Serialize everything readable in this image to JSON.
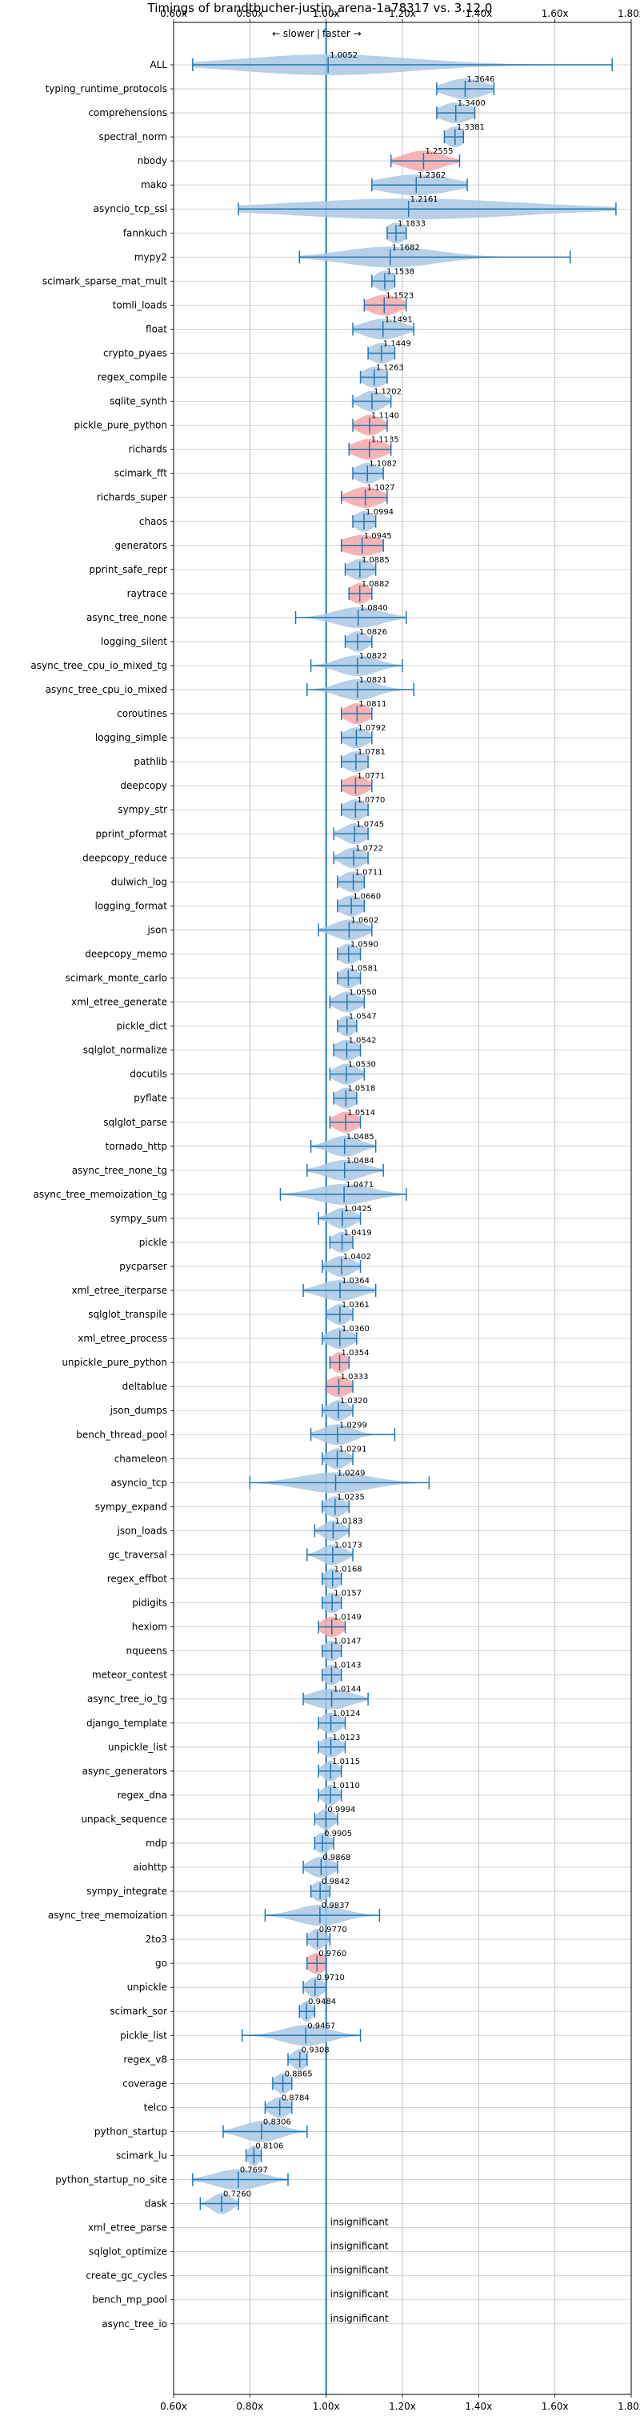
{
  "chart_data": {
    "type": "violin",
    "title": "Timings of brandtbucher-justin_arena-1a78317 vs. 3.12.0",
    "direction_labels": {
      "slower": "← slower",
      "faster": "faster →",
      "separator": "|"
    },
    "xlim": [
      0.6,
      1.8
    ],
    "x_ticks": [
      {
        "value": 0.6,
        "label": "0.60x"
      },
      {
        "value": 0.8,
        "label": "0.80x"
      },
      {
        "value": 1.0,
        "label": "1.00x"
      },
      {
        "value": 1.2,
        "label": "1.20x"
      },
      {
        "value": 1.4,
        "label": "1.40x"
      },
      {
        "value": 1.6,
        "label": "1.60x"
      },
      {
        "value": 1.8,
        "label": "1.80x"
      }
    ],
    "reference_line": 1.0,
    "grid": true,
    "insignificant_label": "insignificant",
    "colors": {
      "normal": "#1f77b4",
      "normal_fill": "#aac8e4",
      "highlight_fill": "#f4a7a9"
    },
    "benchmarks": [
      {
        "name": "ALL",
        "value": 1.0052,
        "label": "1.0052",
        "min": 0.65,
        "max": 1.75,
        "spread": 0.22,
        "highlight": false
      },
      {
        "name": "typing_runtime_protocols",
        "value": 1.3646,
        "label": "1.3646",
        "min": 1.29,
        "max": 1.44,
        "spread": 0.05,
        "highlight": false
      },
      {
        "name": "comprehensions",
        "value": 1.34,
        "label": "1.3400",
        "min": 1.29,
        "max": 1.39,
        "spread": 0.04,
        "highlight": false
      },
      {
        "name": "spectral_norm",
        "value": 1.3381,
        "label": "1.3381",
        "min": 1.31,
        "max": 1.36,
        "spread": 0.025,
        "highlight": false
      },
      {
        "name": "nbody",
        "value": 1.2555,
        "label": "1.2555",
        "min": 1.17,
        "max": 1.35,
        "spread": 0.05,
        "highlight": true
      },
      {
        "name": "mako",
        "value": 1.2362,
        "label": "1.2362",
        "min": 1.12,
        "max": 1.37,
        "spread": 0.09,
        "highlight": false
      },
      {
        "name": "asyncio_tcp_ssl",
        "value": 1.2161,
        "label": "1.2161",
        "min": 0.77,
        "max": 1.76,
        "spread": 0.3,
        "highlight": false
      },
      {
        "name": "fannkuch",
        "value": 1.1833,
        "label": "1.1833",
        "min": 1.16,
        "max": 1.21,
        "spread": 0.025,
        "highlight": false
      },
      {
        "name": "mypy2",
        "value": 1.1682,
        "label": "1.1682",
        "min": 0.93,
        "max": 1.64,
        "spread": 0.12,
        "highlight": false
      },
      {
        "name": "scimark_sparse_mat_mult",
        "value": 1.1538,
        "label": "1.1538",
        "min": 1.12,
        "max": 1.18,
        "spread": 0.025,
        "highlight": false
      },
      {
        "name": "tomli_loads",
        "value": 1.1523,
        "label": "1.1523",
        "min": 1.1,
        "max": 1.21,
        "spread": 0.04,
        "highlight": true
      },
      {
        "name": "float",
        "value": 1.1491,
        "label": "1.1491",
        "min": 1.07,
        "max": 1.23,
        "spread": 0.05,
        "highlight": false
      },
      {
        "name": "crypto_pyaes",
        "value": 1.1449,
        "label": "1.1449",
        "min": 1.11,
        "max": 1.18,
        "spread": 0.03,
        "highlight": false
      },
      {
        "name": "regex_compile",
        "value": 1.1263,
        "label": "1.1263",
        "min": 1.09,
        "max": 1.16,
        "spread": 0.03,
        "highlight": false
      },
      {
        "name": "sqlite_synth",
        "value": 1.1202,
        "label": "1.1202",
        "min": 1.07,
        "max": 1.17,
        "spread": 0.03,
        "highlight": false
      },
      {
        "name": "pickle_pure_python",
        "value": 1.114,
        "label": "1.1140",
        "min": 1.07,
        "max": 1.16,
        "spread": 0.03,
        "highlight": true
      },
      {
        "name": "richards",
        "value": 1.1135,
        "label": "1.1135",
        "min": 1.06,
        "max": 1.17,
        "spread": 0.04,
        "highlight": true
      },
      {
        "name": "scimark_fft",
        "value": 1.1082,
        "label": "1.1082",
        "min": 1.07,
        "max": 1.15,
        "spread": 0.03,
        "highlight": false
      },
      {
        "name": "richards_super",
        "value": 1.1027,
        "label": "1.1027",
        "min": 1.04,
        "max": 1.16,
        "spread": 0.04,
        "highlight": true
      },
      {
        "name": "chaos",
        "value": 1.0994,
        "label": "1.0994",
        "min": 1.07,
        "max": 1.13,
        "spread": 0.025,
        "highlight": false
      },
      {
        "name": "generators",
        "value": 1.0945,
        "label": "1.0945",
        "min": 1.04,
        "max": 1.15,
        "spread": 0.05,
        "highlight": true
      },
      {
        "name": "pprint_safe_repr",
        "value": 1.0885,
        "label": "1.0885",
        "min": 1.05,
        "max": 1.13,
        "spread": 0.03,
        "highlight": false
      },
      {
        "name": "raytrace",
        "value": 1.0882,
        "label": "1.0882",
        "min": 1.06,
        "max": 1.12,
        "spread": 0.025,
        "highlight": true
      },
      {
        "name": "async_tree_none",
        "value": 1.084,
        "label": "1.0840",
        "min": 0.92,
        "max": 1.21,
        "spread": 0.06,
        "highlight": false
      },
      {
        "name": "logging_silent",
        "value": 1.0826,
        "label": "1.0826",
        "min": 1.05,
        "max": 1.12,
        "spread": 0.025,
        "highlight": false
      },
      {
        "name": "async_tree_cpu_io_mixed_tg",
        "value": 1.0822,
        "label": "1.0822",
        "min": 0.96,
        "max": 1.2,
        "spread": 0.05,
        "highlight": false
      },
      {
        "name": "async_tree_cpu_io_mixed",
        "value": 1.0821,
        "label": "1.0821",
        "min": 0.95,
        "max": 1.23,
        "spread": 0.05,
        "highlight": false
      },
      {
        "name": "coroutines",
        "value": 1.0811,
        "label": "1.0811",
        "min": 1.04,
        "max": 1.12,
        "spread": 0.03,
        "highlight": true
      },
      {
        "name": "logging_simple",
        "value": 1.0792,
        "label": "1.0792",
        "min": 1.04,
        "max": 1.12,
        "spread": 0.03,
        "highlight": false
      },
      {
        "name": "pathlib",
        "value": 1.0781,
        "label": "1.0781",
        "min": 1.04,
        "max": 1.11,
        "spread": 0.03,
        "highlight": false
      },
      {
        "name": "deepcopy",
        "value": 1.0771,
        "label": "1.0771",
        "min": 1.04,
        "max": 1.12,
        "spread": 0.03,
        "highlight": true
      },
      {
        "name": "sympy_str",
        "value": 1.077,
        "label": "1.0770",
        "min": 1.04,
        "max": 1.11,
        "spread": 0.03,
        "highlight": false
      },
      {
        "name": "pprint_pformat",
        "value": 1.0745,
        "label": "1.0745",
        "min": 1.02,
        "max": 1.11,
        "spread": 0.03,
        "highlight": false
      },
      {
        "name": "deepcopy_reduce",
        "value": 1.0722,
        "label": "1.0722",
        "min": 1.02,
        "max": 1.11,
        "spread": 0.03,
        "highlight": false
      },
      {
        "name": "dulwich_log",
        "value": 1.0711,
        "label": "1.0711",
        "min": 1.03,
        "max": 1.1,
        "spread": 0.03,
        "highlight": false
      },
      {
        "name": "logging_format",
        "value": 1.066,
        "label": "1.0660",
        "min": 1.03,
        "max": 1.1,
        "spread": 0.03,
        "highlight": false
      },
      {
        "name": "json",
        "value": 1.0602,
        "label": "1.0602",
        "min": 0.98,
        "max": 1.12,
        "spread": 0.04,
        "highlight": false
      },
      {
        "name": "deepcopy_memo",
        "value": 1.059,
        "label": "1.0590",
        "min": 1.03,
        "max": 1.09,
        "spread": 0.025,
        "highlight": false
      },
      {
        "name": "scimark_monte_carlo",
        "value": 1.0581,
        "label": "1.0581",
        "min": 1.03,
        "max": 1.09,
        "spread": 0.025,
        "highlight": false
      },
      {
        "name": "xml_etree_generate",
        "value": 1.055,
        "label": "1.0550",
        "min": 1.01,
        "max": 1.1,
        "spread": 0.03,
        "highlight": false
      },
      {
        "name": "pickle_dict",
        "value": 1.0547,
        "label": "1.0547",
        "min": 1.03,
        "max": 1.08,
        "spread": 0.02,
        "highlight": false
      },
      {
        "name": "sqlglot_normalize",
        "value": 1.0542,
        "label": "1.0542",
        "min": 1.02,
        "max": 1.09,
        "spread": 0.03,
        "highlight": false
      },
      {
        "name": "docutils",
        "value": 1.053,
        "label": "1.0530",
        "min": 1.01,
        "max": 1.1,
        "spread": 0.03,
        "highlight": false
      },
      {
        "name": "pyflate",
        "value": 1.0518,
        "label": "1.0518",
        "min": 1.02,
        "max": 1.08,
        "spread": 0.025,
        "highlight": false
      },
      {
        "name": "sqlglot_parse",
        "value": 1.0514,
        "label": "1.0514",
        "min": 1.01,
        "max": 1.09,
        "spread": 0.03,
        "highlight": true
      },
      {
        "name": "tornado_http",
        "value": 1.0485,
        "label": "1.0485",
        "min": 0.96,
        "max": 1.13,
        "spread": 0.04,
        "highlight": false
      },
      {
        "name": "async_tree_none_tg",
        "value": 1.0484,
        "label": "1.0484",
        "min": 0.95,
        "max": 1.15,
        "spread": 0.05,
        "highlight": false
      },
      {
        "name": "async_tree_memoization_tg",
        "value": 1.0471,
        "label": "1.0471",
        "min": 0.88,
        "max": 1.21,
        "spread": 0.07,
        "highlight": false
      },
      {
        "name": "sympy_sum",
        "value": 1.0425,
        "label": "1.0425",
        "min": 0.98,
        "max": 1.09,
        "spread": 0.03,
        "highlight": false
      },
      {
        "name": "pickle",
        "value": 1.0419,
        "label": "1.0419",
        "min": 1.01,
        "max": 1.07,
        "spread": 0.025,
        "highlight": false
      },
      {
        "name": "pycparser",
        "value": 1.0402,
        "label": "1.0402",
        "min": 0.99,
        "max": 1.09,
        "spread": 0.03,
        "highlight": false
      },
      {
        "name": "xml_etree_iterparse",
        "value": 1.0364,
        "label": "1.0364",
        "min": 0.94,
        "max": 1.13,
        "spread": 0.05,
        "highlight": false
      },
      {
        "name": "sqlglot_transpile",
        "value": 1.0361,
        "label": "1.0361",
        "min": 1.0,
        "max": 1.07,
        "spread": 0.025,
        "highlight": false
      },
      {
        "name": "xml_etree_process",
        "value": 1.036,
        "label": "1.0360",
        "min": 0.99,
        "max": 1.08,
        "spread": 0.03,
        "highlight": false
      },
      {
        "name": "unpickle_pure_python",
        "value": 1.0354,
        "label": "1.0354",
        "min": 1.01,
        "max": 1.06,
        "spread": 0.02,
        "highlight": true
      },
      {
        "name": "deltablue",
        "value": 1.0333,
        "label": "1.0333",
        "min": 1.0,
        "max": 1.07,
        "spread": 0.03,
        "highlight": true
      },
      {
        "name": "json_dumps",
        "value": 1.032,
        "label": "1.0320",
        "min": 0.99,
        "max": 1.07,
        "spread": 0.025,
        "highlight": false
      },
      {
        "name": "bench_thread_pool",
        "value": 1.0299,
        "label": "1.0299",
        "min": 0.96,
        "max": 1.18,
        "spread": 0.04,
        "highlight": false
      },
      {
        "name": "chameleon",
        "value": 1.0291,
        "label": "1.0291",
        "min": 0.99,
        "max": 1.07,
        "spread": 0.025,
        "highlight": false
      },
      {
        "name": "asyncio_tcp",
        "value": 1.0249,
        "label": "1.0249",
        "min": 0.8,
        "max": 1.27,
        "spread": 0.09,
        "highlight": false
      },
      {
        "name": "sympy_expand",
        "value": 1.0235,
        "label": "1.0235",
        "min": 0.99,
        "max": 1.06,
        "spread": 0.025,
        "highlight": false
      },
      {
        "name": "json_loads",
        "value": 1.0183,
        "label": "1.0183",
        "min": 0.97,
        "max": 1.06,
        "spread": 0.025,
        "highlight": false
      },
      {
        "name": "gc_traversal",
        "value": 1.0173,
        "label": "1.0173",
        "min": 0.95,
        "max": 1.07,
        "spread": 0.03,
        "highlight": false
      },
      {
        "name": "regex_effbot",
        "value": 1.0168,
        "label": "1.0168",
        "min": 0.99,
        "max": 1.04,
        "spread": 0.02,
        "highlight": false
      },
      {
        "name": "pidigits",
        "value": 1.0157,
        "label": "1.0157",
        "min": 0.99,
        "max": 1.04,
        "spread": 0.02,
        "highlight": false
      },
      {
        "name": "hexiom",
        "value": 1.0149,
        "label": "1.0149",
        "min": 0.98,
        "max": 1.05,
        "spread": 0.025,
        "highlight": true
      },
      {
        "name": "nqueens",
        "value": 1.0147,
        "label": "1.0147",
        "min": 0.99,
        "max": 1.04,
        "spread": 0.02,
        "highlight": false
      },
      {
        "name": "meteor_contest",
        "value": 1.0143,
        "label": "1.0143",
        "min": 0.99,
        "max": 1.04,
        "spread": 0.02,
        "highlight": false
      },
      {
        "name": "async_tree_io_tg",
        "value": 1.0144,
        "label": "1.0144",
        "min": 0.94,
        "max": 1.11,
        "spread": 0.05,
        "highlight": false
      },
      {
        "name": "django_template",
        "value": 1.0124,
        "label": "1.0124",
        "min": 0.98,
        "max": 1.05,
        "spread": 0.025,
        "highlight": false
      },
      {
        "name": "unpickle_list",
        "value": 1.0123,
        "label": "1.0123",
        "min": 0.98,
        "max": 1.05,
        "spread": 0.025,
        "highlight": false
      },
      {
        "name": "async_generators",
        "value": 1.0115,
        "label": "1.0115",
        "min": 0.98,
        "max": 1.04,
        "spread": 0.02,
        "highlight": false
      },
      {
        "name": "regex_dna",
        "value": 1.011,
        "label": "1.0110",
        "min": 0.98,
        "max": 1.04,
        "spread": 0.02,
        "highlight": false
      },
      {
        "name": "unpack_sequence",
        "value": 0.9994,
        "label": "0.9994",
        "min": 0.97,
        "max": 1.03,
        "spread": 0.02,
        "highlight": false
      },
      {
        "name": "mdp",
        "value": 0.9905,
        "label": "0.9905",
        "min": 0.97,
        "max": 1.02,
        "spread": 0.02,
        "highlight": false
      },
      {
        "name": "aiohttp",
        "value": 0.9868,
        "label": "0.9868",
        "min": 0.94,
        "max": 1.03,
        "spread": 0.03,
        "highlight": false
      },
      {
        "name": "sympy_integrate",
        "value": 0.9842,
        "label": "0.9842",
        "min": 0.96,
        "max": 1.01,
        "spread": 0.02,
        "highlight": false
      },
      {
        "name": "async_tree_memoization",
        "value": 0.9837,
        "label": "0.9837",
        "min": 0.84,
        "max": 1.14,
        "spread": 0.06,
        "highlight": false
      },
      {
        "name": "2to3",
        "value": 0.977,
        "label": "0.9770",
        "min": 0.95,
        "max": 1.01,
        "spread": 0.02,
        "highlight": false
      },
      {
        "name": "go",
        "value": 0.976,
        "label": "0.9760",
        "min": 0.95,
        "max": 1.0,
        "spread": 0.025,
        "highlight": true
      },
      {
        "name": "unpickle",
        "value": 0.971,
        "label": "0.9710",
        "min": 0.94,
        "max": 1.0,
        "spread": 0.02,
        "highlight": false
      },
      {
        "name": "scimark_sor",
        "value": 0.9484,
        "label": "0.9484",
        "min": 0.93,
        "max": 0.97,
        "spread": 0.015,
        "highlight": false
      },
      {
        "name": "pickle_list",
        "value": 0.9467,
        "label": "0.9467",
        "min": 0.78,
        "max": 1.09,
        "spread": 0.06,
        "highlight": false
      },
      {
        "name": "regex_v8",
        "value": 0.9308,
        "label": "0.9308",
        "min": 0.9,
        "max": 0.95,
        "spread": 0.02,
        "highlight": false
      },
      {
        "name": "coverage",
        "value": 0.8865,
        "label": "0.8865",
        "min": 0.86,
        "max": 0.91,
        "spread": 0.02,
        "highlight": false
      },
      {
        "name": "telco",
        "value": 0.8784,
        "label": "0.8784",
        "min": 0.84,
        "max": 0.91,
        "spread": 0.025,
        "highlight": false
      },
      {
        "name": "python_startup",
        "value": 0.8306,
        "label": "0.8306",
        "min": 0.73,
        "max": 0.95,
        "spread": 0.05,
        "highlight": false
      },
      {
        "name": "scimark_lu",
        "value": 0.8106,
        "label": "0.8106",
        "min": 0.79,
        "max": 0.83,
        "spread": 0.015,
        "highlight": false
      },
      {
        "name": "python_startup_no_site",
        "value": 0.7697,
        "label": "0.7697",
        "min": 0.65,
        "max": 0.9,
        "spread": 0.06,
        "highlight": false
      },
      {
        "name": "dask",
        "value": 0.726,
        "label": "0.7260",
        "min": 0.67,
        "max": 0.77,
        "spread": 0.025,
        "highlight": false
      },
      {
        "name": "xml_etree_parse",
        "insignificant": true
      },
      {
        "name": "sqlglot_optimize",
        "insignificant": true
      },
      {
        "name": "create_gc_cycles",
        "insignificant": true
      },
      {
        "name": "bench_mp_pool",
        "insignificant": true
      },
      {
        "name": "async_tree_io",
        "insignificant": true
      }
    ]
  }
}
